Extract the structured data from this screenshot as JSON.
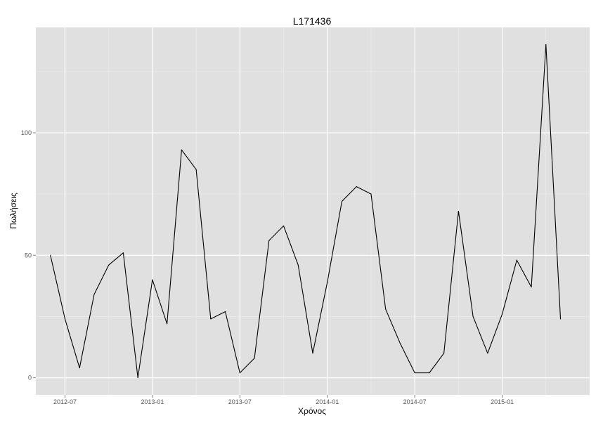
{
  "chart_data": {
    "type": "line",
    "title": "L171436",
    "xlabel": "Χρόνος",
    "ylabel": "Πωλήσεις",
    "x_ticks": [
      "2012-07",
      "2013-01",
      "2013-07",
      "2014-01",
      "2014-07",
      "2015-01"
    ],
    "y_ticks": [
      0,
      50,
      100
    ],
    "xlim": [
      "2012-05",
      "2015-07"
    ],
    "ylim": [
      -7,
      143
    ],
    "grid": true,
    "legend": "none",
    "colors": {
      "panel": "#e0e0e0",
      "grid_major": "#ffffff",
      "grid_minor": "#ececec",
      "line": "#000000"
    },
    "series": [
      {
        "x": [
          "2012-06",
          "2012-07",
          "2012-08",
          "2012-09",
          "2012-10",
          "2012-11",
          "2012-12",
          "2013-01",
          "2013-02",
          "2013-03",
          "2013-04",
          "2013-05",
          "2013-06",
          "2013-07",
          "2013-08",
          "2013-09",
          "2013-10",
          "2013-11",
          "2013-12",
          "2014-01",
          "2014-02",
          "2014-03",
          "2014-04",
          "2014-05",
          "2014-06",
          "2014-07",
          "2014-08",
          "2014-09",
          "2014-10",
          "2014-11",
          "2014-12",
          "2015-01",
          "2015-02",
          "2015-03",
          "2015-04",
          "2015-05"
        ],
        "values": [
          50,
          24,
          4,
          34,
          46,
          51,
          0,
          40,
          22,
          93,
          85,
          24,
          27,
          2,
          8,
          56,
          62,
          46,
          10,
          39,
          72,
          78,
          75,
          28,
          14,
          2,
          2,
          10,
          68,
          25,
          10,
          26,
          48,
          37,
          136,
          24
        ]
      }
    ]
  }
}
